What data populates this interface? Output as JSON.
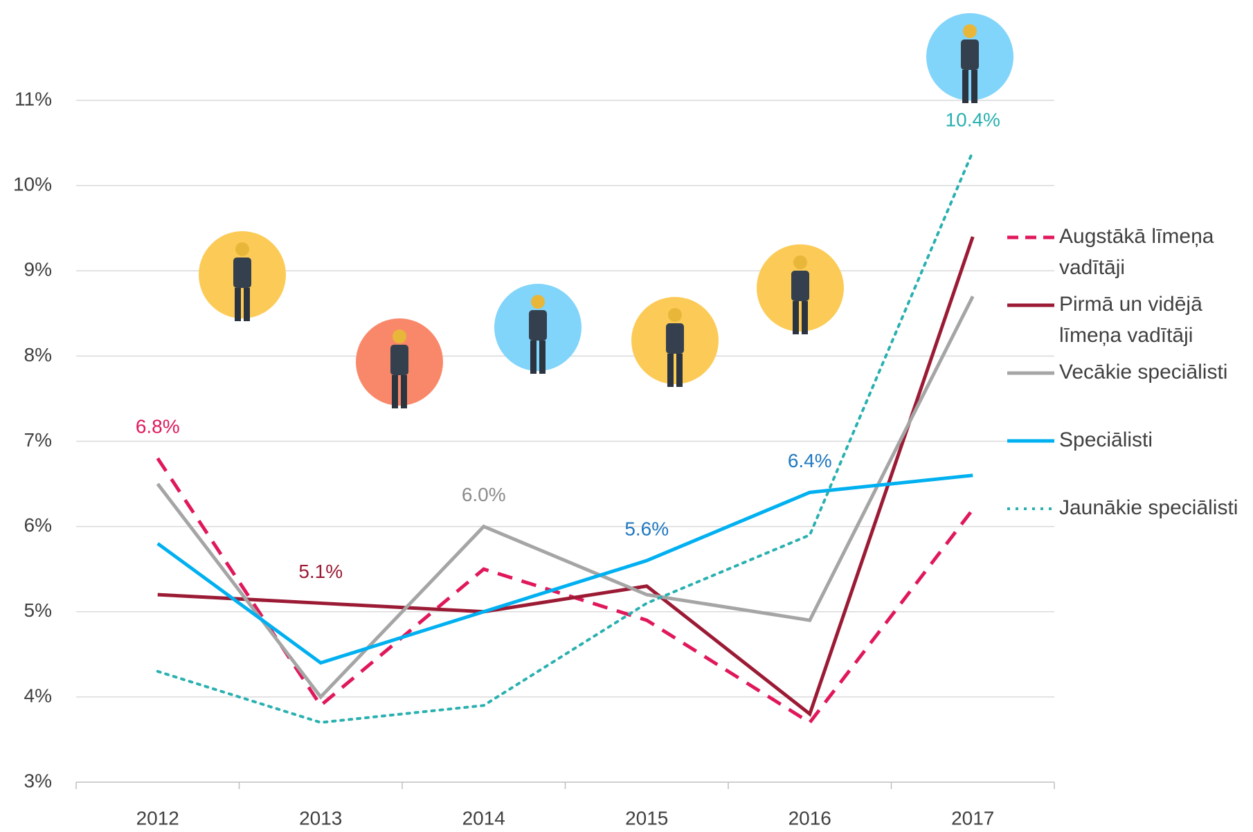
{
  "chart_data": {
    "type": "line",
    "categories": [
      "2012",
      "2013",
      "2014",
      "2015",
      "2016",
      "2017"
    ],
    "ylim": [
      3,
      11
    ],
    "yticks": [
      {
        "value": 3,
        "label": "3%"
      },
      {
        "value": 4,
        "label": "4%"
      },
      {
        "value": 5,
        "label": "5%"
      },
      {
        "value": 6,
        "label": "6%"
      },
      {
        "value": 7,
        "label": "7%"
      },
      {
        "value": 8,
        "label": "8%"
      },
      {
        "value": 9,
        "label": "9%"
      },
      {
        "value": 10,
        "label": "10%"
      },
      {
        "value": 11,
        "label": "11%"
      }
    ],
    "grid": true,
    "legend": "right",
    "series": [
      {
        "name": "Augstākā līmeņa vadītāji",
        "color": "#e0185a",
        "label_color": "#e0185a",
        "dash": "dashed",
        "values": [
          6.8,
          3.9,
          5.5,
          4.9,
          3.7,
          6.2
        ],
        "value_labels": [
          "6.8%",
          null,
          null,
          null,
          null,
          null
        ]
      },
      {
        "name": "Pirmā un vidējā līmeņa vadītāji",
        "color": "#9b1b35",
        "label_color": "#9b1b35",
        "dash": "solid",
        "values": [
          5.2,
          5.1,
          5.0,
          5.3,
          3.8,
          9.4
        ],
        "value_labels": [
          null,
          "5.1%",
          null,
          null,
          null,
          null
        ]
      },
      {
        "name": "Vecākie speciālisti",
        "color": "#a5a5a5",
        "label_color": "#8c8c8c",
        "dash": "solid",
        "values": [
          6.5,
          4.0,
          6.0,
          5.2,
          4.9,
          8.7
        ],
        "value_labels": [
          null,
          null,
          "6.0%",
          null,
          null,
          null
        ]
      },
      {
        "name": "Speciālisti",
        "color": "#00b0f0",
        "label_color": "#1f78c1",
        "dash": "solid",
        "values": [
          5.8,
          4.4,
          5.0,
          5.6,
          6.4,
          6.6
        ],
        "value_labels": [
          null,
          null,
          null,
          "5.6%",
          "6.4%",
          null
        ]
      },
      {
        "name": "Jaunākie speciālisti",
        "color": "#2ab0b0",
        "label_color": "#2ab0b0",
        "dash": "dotted",
        "values": [
          4.3,
          3.7,
          3.9,
          5.1,
          5.9,
          10.4
        ],
        "value_labels": [
          null,
          null,
          null,
          null,
          null,
          "10.4%"
        ]
      }
    ]
  }
}
